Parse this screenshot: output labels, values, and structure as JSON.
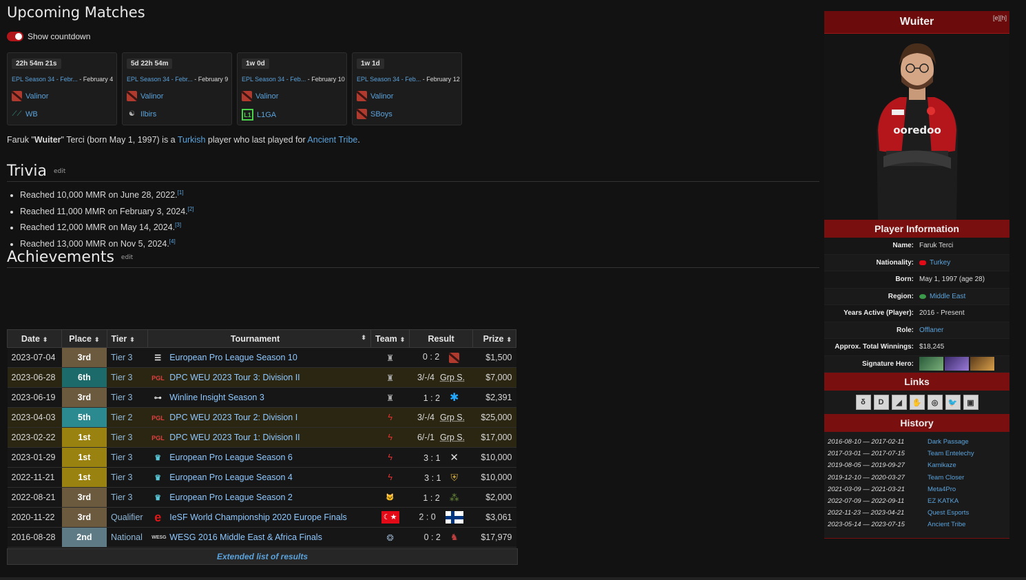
{
  "upcoming": {
    "title": "Upcoming Matches",
    "countdown_label": "Show countdown",
    "matches": [
      {
        "countdown": "22h 54m 21s",
        "event": "EPL Season 34 - Febr...",
        "date": "- February 4",
        "team1": "Valinor",
        "team2": "WB"
      },
      {
        "countdown": "5d 22h 54m",
        "event": "EPL Season 34 - Febr...",
        "date": "- February 9",
        "team1": "Valinor",
        "team2": "Ilbirs"
      },
      {
        "countdown": "1w 0d",
        "event": "EPL Season 34 - Feb...",
        "date": "- February 10",
        "team1": "Valinor",
        "team2": "L1GA"
      },
      {
        "countdown": "1w 1d",
        "event": "EPL Season 34 - Feb...",
        "date": "- February 12",
        "team1": "Valinor",
        "team2": "SBoys"
      }
    ]
  },
  "intro": {
    "pre": "Faruk \"",
    "nick": "Wuiter",
    "mid": "\" Terci (born May 1, 1997) is a ",
    "nationality": "Turkish",
    "mid2": " player who last played for ",
    "team": "Ancient Tribe",
    "end": "."
  },
  "trivia": {
    "title": "Trivia",
    "edit": "edit",
    "items": [
      {
        "text": "Reached 10,000 MMR on June 28, 2022.",
        "ref": "[1]"
      },
      {
        "text": "Reached 11,000 MMR on February 3, 2024.",
        "ref": "[2]"
      },
      {
        "text": "Reached 12,000 MMR on May 14, 2024.",
        "ref": "[3]"
      },
      {
        "text": "Reached 13,000 MMR on Nov 5, 2024.",
        "ref": "[4]"
      }
    ]
  },
  "achievements": {
    "title": "Achievements",
    "edit": "edit",
    "headers": [
      "Date",
      "Place",
      "Tier",
      "Tournament",
      "Team",
      "Result",
      "Prize"
    ],
    "rows": [
      {
        "date": "2023-07-04",
        "place": "3rd",
        "tier": "Tier 3",
        "tournament": "European Pro League Season 10",
        "result": "0 : 2",
        "grp": "",
        "prize": "$1,500"
      },
      {
        "date": "2023-06-28",
        "place": "6th",
        "tier": "Tier 3",
        "tournament": "DPC WEU 2023 Tour 3: Division II",
        "result": "3/-/4",
        "grp": "Grp S.",
        "prize": "$7,000"
      },
      {
        "date": "2023-06-19",
        "place": "3rd",
        "tier": "Tier 3",
        "tournament": "Winline Insight Season 3",
        "result": "1 : 2",
        "grp": "",
        "prize": "$2,391"
      },
      {
        "date": "2023-04-03",
        "place": "5th",
        "tier": "Tier 2",
        "tournament": "DPC WEU 2023 Tour 2: Division I",
        "result": "3/-/4",
        "grp": "Grp S.",
        "prize": "$25,000"
      },
      {
        "date": "2023-02-22",
        "place": "1st",
        "tier": "Tier 3",
        "tournament": "DPC WEU 2023 Tour 1: Division II",
        "result": "6/-/1",
        "grp": "Grp S.",
        "prize": "$17,000"
      },
      {
        "date": "2023-01-29",
        "place": "1st",
        "tier": "Tier 3",
        "tournament": "European Pro League Season 6",
        "result": "3 : 1",
        "grp": "",
        "prize": "$10,000"
      },
      {
        "date": "2022-11-21",
        "place": "1st",
        "tier": "Tier 3",
        "tournament": "European Pro League Season 4",
        "result": "3 : 1",
        "grp": "",
        "prize": "$10,000"
      },
      {
        "date": "2022-08-21",
        "place": "3rd",
        "tier": "Tier 3",
        "tournament": "European Pro League Season 2",
        "result": "1 : 2",
        "grp": "",
        "prize": "$2,000"
      },
      {
        "date": "2020-11-22",
        "place": "3rd",
        "tier": "Qualifier",
        "tournament": "IeSF World Championship 2020 Europe Finals",
        "result": "2 : 0",
        "grp": "",
        "prize": "$3,061"
      },
      {
        "date": "2016-08-28",
        "place": "2nd",
        "tier": "National",
        "tournament": "WESG 2016 Middle East & Africa Finals",
        "result": "0 : 2",
        "grp": "",
        "prize": "$17,979"
      }
    ],
    "extended": "Extended list of results"
  },
  "infobox": {
    "name": "Wuiter",
    "edit_links": "[e][h]",
    "player_info_title": "Player Information",
    "fields": [
      {
        "k": "Name:",
        "v": "Faruk Terci"
      },
      {
        "k": "Nationality:",
        "v": "Turkey"
      },
      {
        "k": "Born:",
        "v": "May 1, 1997 (age 28)"
      },
      {
        "k": "Region:",
        "v": "Middle East"
      },
      {
        "k": "Years Active (Player):",
        "v": "2016 - Present"
      },
      {
        "k": "Role:",
        "v": "Offlaner"
      },
      {
        "k": "Approx. Total Winnings:",
        "v": "$18,245"
      },
      {
        "k": "Signature Hero:",
        "v": ""
      }
    ],
    "links_title": "Links",
    "history_title": "History",
    "history": [
      {
        "dates": "2016-08-10 — 2017-02-11",
        "team": "Dark Passage"
      },
      {
        "dates": "2017-03-01 — 2017-07-15",
        "team": "Team Entelechy"
      },
      {
        "dates": "2019-08-05 — 2019-09-27",
        "team": "Kamikaze"
      },
      {
        "dates": "2019-12-10 — 2020-03-27",
        "team": "Team Closer"
      },
      {
        "dates": "2021-03-09 — 2021-03-21",
        "team": "Meta4Pro"
      },
      {
        "dates": "2022-07-09 — 2022-09-11",
        "team": "EZ KATKA"
      },
      {
        "dates": "2022-11-23 — 2023-04-21",
        "team": "Quest Esports"
      },
      {
        "dates": "2023-05-14 — 2023-07-15",
        "team": "Ancient Tribe"
      }
    ]
  }
}
